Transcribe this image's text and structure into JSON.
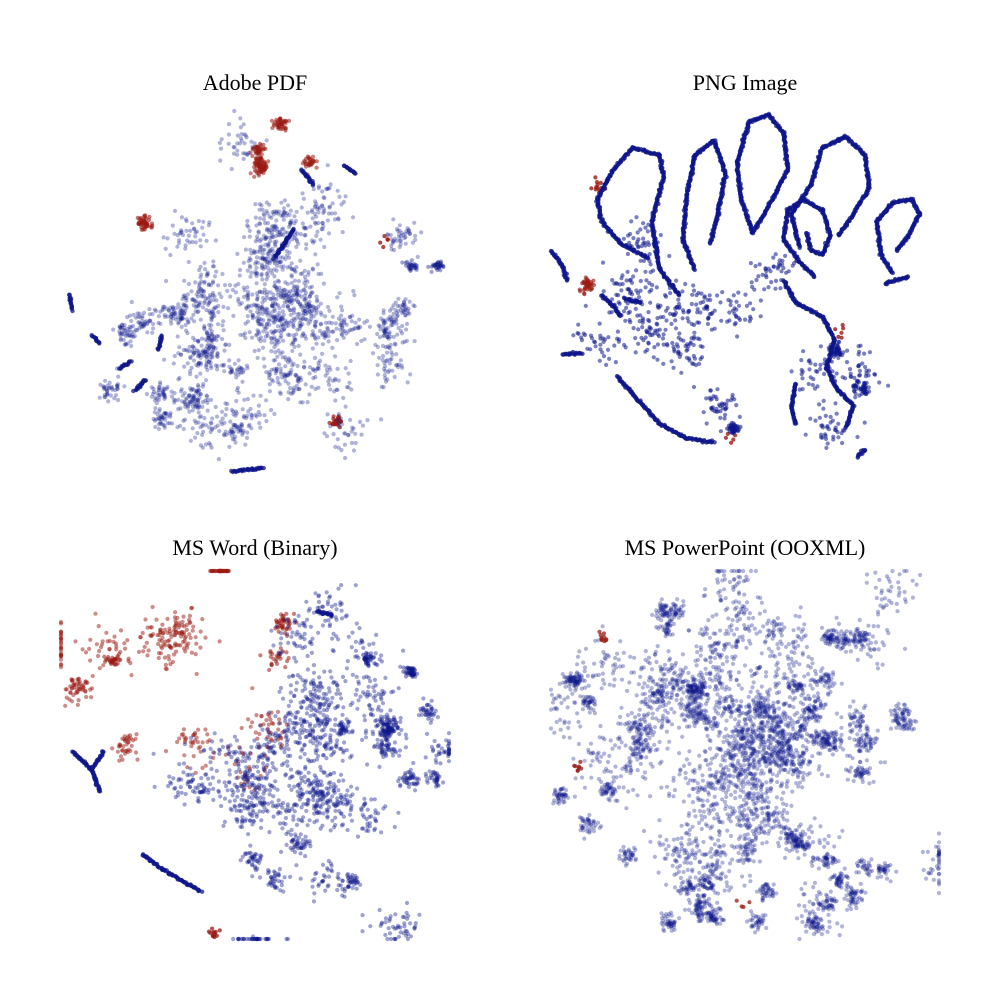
{
  "colors": {
    "class_a": "#0d168a",
    "class_b": "#9b1b14"
  },
  "chart_data": [
    {
      "type": "scatter",
      "title": "Adobe PDF",
      "axes_visible": false,
      "grid": false,
      "clusters": [
        {
          "class": "b",
          "x": 50,
          "y": 90,
          "spread": 5,
          "count": 190,
          "alpha": 0.55
        },
        {
          "class": "b",
          "x": 21,
          "y": 72,
          "spread": 3,
          "count": 50,
          "alpha": 0.6
        },
        {
          "class": "b",
          "x": 68,
          "y": 12,
          "spread": 3,
          "count": 26,
          "alpha": 0.7
        },
        {
          "class": "b",
          "x": 86,
          "y": 66,
          "spread": 2,
          "count": 5,
          "alpha": 0.8
        },
        {
          "class": "a",
          "x": 53,
          "y": 52,
          "spread": 18,
          "count": 1350,
          "alpha": 0.32
        },
        {
          "class": "a",
          "x": 32,
          "y": 40,
          "spread": 10,
          "count": 260,
          "alpha": 0.32
        },
        {
          "class": "a",
          "x": 78,
          "y": 45,
          "spread": 10,
          "count": 220,
          "alpha": 0.32
        },
        {
          "class": "a",
          "x": 40,
          "y": 20,
          "spread": 9,
          "count": 180,
          "alpha": 0.32
        },
        {
          "class": "a",
          "x": 95,
          "y": 58,
          "spread": 3,
          "count": 60,
          "alpha": 0.4
        }
      ],
      "strands": [
        {
          "class": "a",
          "points": [
            [
              44,
              2
            ],
            [
              52,
              3
            ]
          ]
        },
        {
          "class": "a",
          "points": [
            [
              2,
              50
            ],
            [
              3,
              46
            ]
          ]
        },
        {
          "class": "a",
          "points": [
            [
              8,
              39
            ],
            [
              10,
              37
            ]
          ]
        },
        {
          "class": "a",
          "points": [
            [
              15,
              30
            ],
            [
              18,
              32
            ]
          ]
        },
        {
          "class": "a",
          "points": [
            [
              19,
              24
            ],
            [
              22,
              27
            ]
          ]
        },
        {
          "class": "a",
          "points": [
            [
              25,
              35
            ],
            [
              26,
              39
            ]
          ]
        },
        {
          "class": "a",
          "points": [
            [
              73,
              85
            ],
            [
              76,
              83
            ]
          ]
        },
        {
          "class": "a",
          "points": [
            [
              62,
              84
            ],
            [
              65,
              80
            ]
          ]
        },
        {
          "class": "a",
          "points": [
            [
              55,
              60
            ],
            [
              60,
              68
            ]
          ]
        }
      ]
    },
    {
      "type": "scatter",
      "title": "PNG Image",
      "axes_visible": false,
      "grid": false,
      "clusters": [
        {
          "class": "b",
          "x": 16,
          "y": 54,
          "spread": 3,
          "count": 40,
          "alpha": 0.65
        },
        {
          "class": "b",
          "x": 13,
          "y": 79,
          "spread": 1,
          "count": 12,
          "alpha": 0.8
        },
        {
          "class": "b",
          "x": 77,
          "y": 40,
          "spread": 2,
          "count": 6,
          "alpha": 0.8
        },
        {
          "class": "b",
          "x": 48,
          "y": 8,
          "spread": 2,
          "count": 5,
          "alpha": 0.8
        },
        {
          "class": "a",
          "x": 42,
          "y": 35,
          "spread": 16,
          "count": 560,
          "alpha": 0.55
        },
        {
          "class": "a",
          "x": 80,
          "y": 36,
          "spread": 6,
          "count": 90,
          "alpha": 0.55
        },
        {
          "class": "a",
          "x": 48,
          "y": 10,
          "spread": 3,
          "count": 40,
          "alpha": 0.6
        }
      ],
      "strands": [
        {
          "class": "a",
          "points": [
            [
              33,
              50
            ],
            [
              28,
              57
            ],
            [
              26,
              70
            ],
            [
              29,
              82
            ],
            [
              28,
              88
            ],
            [
              21,
              90
            ],
            [
              16,
              84
            ],
            [
              12,
              76
            ],
            [
              13,
              70
            ],
            [
              18,
              64
            ],
            [
              25,
              60
            ]
          ]
        },
        {
          "class": "a",
          "points": [
            [
              37,
              57
            ],
            [
              34,
              65
            ],
            [
              35,
              77
            ],
            [
              37,
              88
            ],
            [
              42,
              92
            ],
            [
              45,
              83
            ],
            [
              43,
              72
            ],
            [
              41,
              64
            ]
          ]
        },
        {
          "class": "a",
          "points": [
            [
              52,
              67
            ],
            [
              49,
              76
            ],
            [
              48,
              86
            ],
            [
              51,
              97
            ],
            [
              56,
              99
            ],
            [
              60,
              94
            ],
            [
              61,
              84
            ],
            [
              58,
              78
            ],
            [
              55,
              72
            ],
            [
              52,
              67
            ]
          ]
        },
        {
          "class": "a",
          "points": [
            [
              64,
              63
            ],
            [
              62,
              72
            ],
            [
              67,
              80
            ],
            [
              70,
              90
            ],
            [
              76,
              93
            ],
            [
              81,
              88
            ],
            [
              82,
              79
            ],
            [
              78,
              72
            ],
            [
              74,
              66
            ]
          ]
        },
        {
          "class": "a",
          "points": [
            [
              68,
              55
            ],
            [
              64,
              59
            ],
            [
              60,
              65
            ],
            [
              61,
              73
            ],
            [
              65,
              76
            ],
            [
              70,
              73
            ],
            [
              72,
              66
            ],
            [
              70,
              61
            ],
            [
              67,
              62
            ],
            [
              66,
              67
            ]
          ]
        },
        {
          "class": "a",
          "points": [
            [
              88,
              56
            ],
            [
              85,
              61
            ],
            [
              84,
              70
            ],
            [
              88,
              75
            ],
            [
              93,
              76
            ],
            [
              95,
              72
            ],
            [
              92,
              66
            ],
            [
              89,
              62
            ]
          ]
        },
        {
          "class": "a",
          "points": [
            [
              60,
              54
            ],
            [
              63,
              48
            ],
            [
              70,
              44
            ],
            [
              73,
              38
            ],
            [
              71,
              30
            ],
            [
              74,
              24
            ],
            [
              78,
              20
            ],
            [
              76,
              14
            ]
          ]
        },
        {
          "class": "a",
          "points": [
            [
              63,
              15
            ],
            [
              62,
              20
            ],
            [
              63,
              26
            ]
          ]
        },
        {
          "class": "a",
          "points": [
            [
              79,
              6
            ],
            [
              81,
              8
            ]
          ]
        },
        {
          "class": "a",
          "points": [
            [
              17,
              28
            ],
            [
              22,
              22
            ],
            [
              28,
              15
            ],
            [
              35,
              11
            ],
            [
              42,
              10
            ]
          ]
        },
        {
          "class": "a",
          "points": [
            [
              0,
              62
            ],
            [
              3,
              58
            ],
            [
              4,
              54
            ]
          ]
        },
        {
          "class": "a",
          "points": [
            [
              13,
              50
            ],
            [
              16,
              47
            ],
            [
              18,
              44
            ]
          ]
        },
        {
          "class": "a",
          "points": [
            [
              3,
              34
            ],
            [
              8,
              34
            ]
          ]
        },
        {
          "class": "a",
          "points": [
            [
              19,
              49
            ],
            [
              23,
              48
            ]
          ]
        },
        {
          "class": "a",
          "points": [
            [
              86,
              53
            ],
            [
              92,
              55
            ]
          ]
        }
      ]
    },
    {
      "type": "scatter",
      "title": "MS Word (Binary)",
      "axes_visible": false,
      "grid": false,
      "clusters": [
        {
          "class": "b",
          "x": 28,
          "y": 72,
          "spread": 18,
          "count": 300,
          "alpha": 0.5
        },
        {
          "class": "b",
          "x": 45,
          "y": 88,
          "spread": 8,
          "count": 110,
          "alpha": 0.55
        },
        {
          "class": "b",
          "x": 20,
          "y": 55,
          "spread": 10,
          "count": 90,
          "alpha": 0.5
        },
        {
          "class": "b",
          "x": 43,
          "y": 7,
          "spread": 3,
          "count": 14,
          "alpha": 0.75
        },
        {
          "class": "b",
          "x": 10,
          "y": 70,
          "spread": 4,
          "count": 30,
          "alpha": 0.55
        },
        {
          "class": "a",
          "x": 66,
          "y": 50,
          "spread": 17,
          "count": 1300,
          "alpha": 0.4
        },
        {
          "class": "a",
          "x": 86,
          "y": 52,
          "spread": 7,
          "count": 260,
          "alpha": 0.4
        },
        {
          "class": "a",
          "x": 57,
          "y": 24,
          "spread": 8,
          "count": 160,
          "alpha": 0.4
        },
        {
          "class": "a",
          "x": 90,
          "y": 74,
          "spread": 3,
          "count": 50,
          "alpha": 0.45
        },
        {
          "class": "a",
          "x": 78,
          "y": 79,
          "spread": 2,
          "count": 20,
          "alpha": 0.5
        }
      ],
      "strands": [
        {
          "class": "a",
          "points": [
            [
              3,
              51
            ],
            [
              8,
              46
            ],
            [
              10,
              40
            ]
          ]
        },
        {
          "class": "a",
          "points": [
            [
              8,
              46
            ],
            [
              11,
              51
            ]
          ]
        },
        {
          "class": "a",
          "points": [
            [
              21,
              23
            ],
            [
              26,
              19
            ],
            [
              31,
              16
            ],
            [
              36,
              13
            ]
          ]
        },
        {
          "class": "a",
          "points": [
            [
              66,
              89
            ],
            [
              70,
              88
            ]
          ]
        }
      ]
    },
    {
      "type": "scatter",
      "title": "MS PowerPoint (OOXML)",
      "axes_visible": false,
      "grid": false,
      "clusters": [
        {
          "class": "a",
          "x": 50,
          "y": 50,
          "spread": 20,
          "count": 2100,
          "alpha": 0.32
        },
        {
          "class": "a",
          "x": 36,
          "y": 60,
          "spread": 9,
          "count": 420,
          "alpha": 0.32
        },
        {
          "class": "a",
          "x": 64,
          "y": 58,
          "spread": 9,
          "count": 380,
          "alpha": 0.32
        },
        {
          "class": "a",
          "x": 56,
          "y": 20,
          "spread": 7,
          "count": 240,
          "alpha": 0.32
        },
        {
          "class": "a",
          "x": 74,
          "y": 18,
          "spread": 7,
          "count": 260,
          "alpha": 0.32
        },
        {
          "class": "a",
          "x": 40,
          "y": 8,
          "spread": 6,
          "count": 190,
          "alpha": 0.32
        },
        {
          "class": "a",
          "x": 18,
          "y": 28,
          "spread": 7,
          "count": 160,
          "alpha": 0.32
        },
        {
          "class": "a",
          "x": 86,
          "y": 48,
          "spread": 7,
          "count": 160,
          "alpha": 0.32
        },
        {
          "class": "a",
          "x": 10,
          "y": 68,
          "spread": 6,
          "count": 110,
          "alpha": 0.32
        },
        {
          "class": "a",
          "x": 25,
          "y": 85,
          "spread": 6,
          "count": 110,
          "alpha": 0.32
        },
        {
          "class": "a",
          "x": 78,
          "y": 84,
          "spread": 6,
          "count": 120,
          "alpha": 0.32
        },
        {
          "class": "b",
          "x": 14,
          "y": 81,
          "spread": 1,
          "count": 10,
          "alpha": 0.75
        },
        {
          "class": "b",
          "x": 5,
          "y": 48,
          "spread": 1,
          "count": 8,
          "alpha": 0.75
        },
        {
          "class": "b",
          "x": 50,
          "y": 10,
          "spread": 1,
          "count": 4,
          "alpha": 0.75
        }
      ],
      "strands": []
    }
  ]
}
